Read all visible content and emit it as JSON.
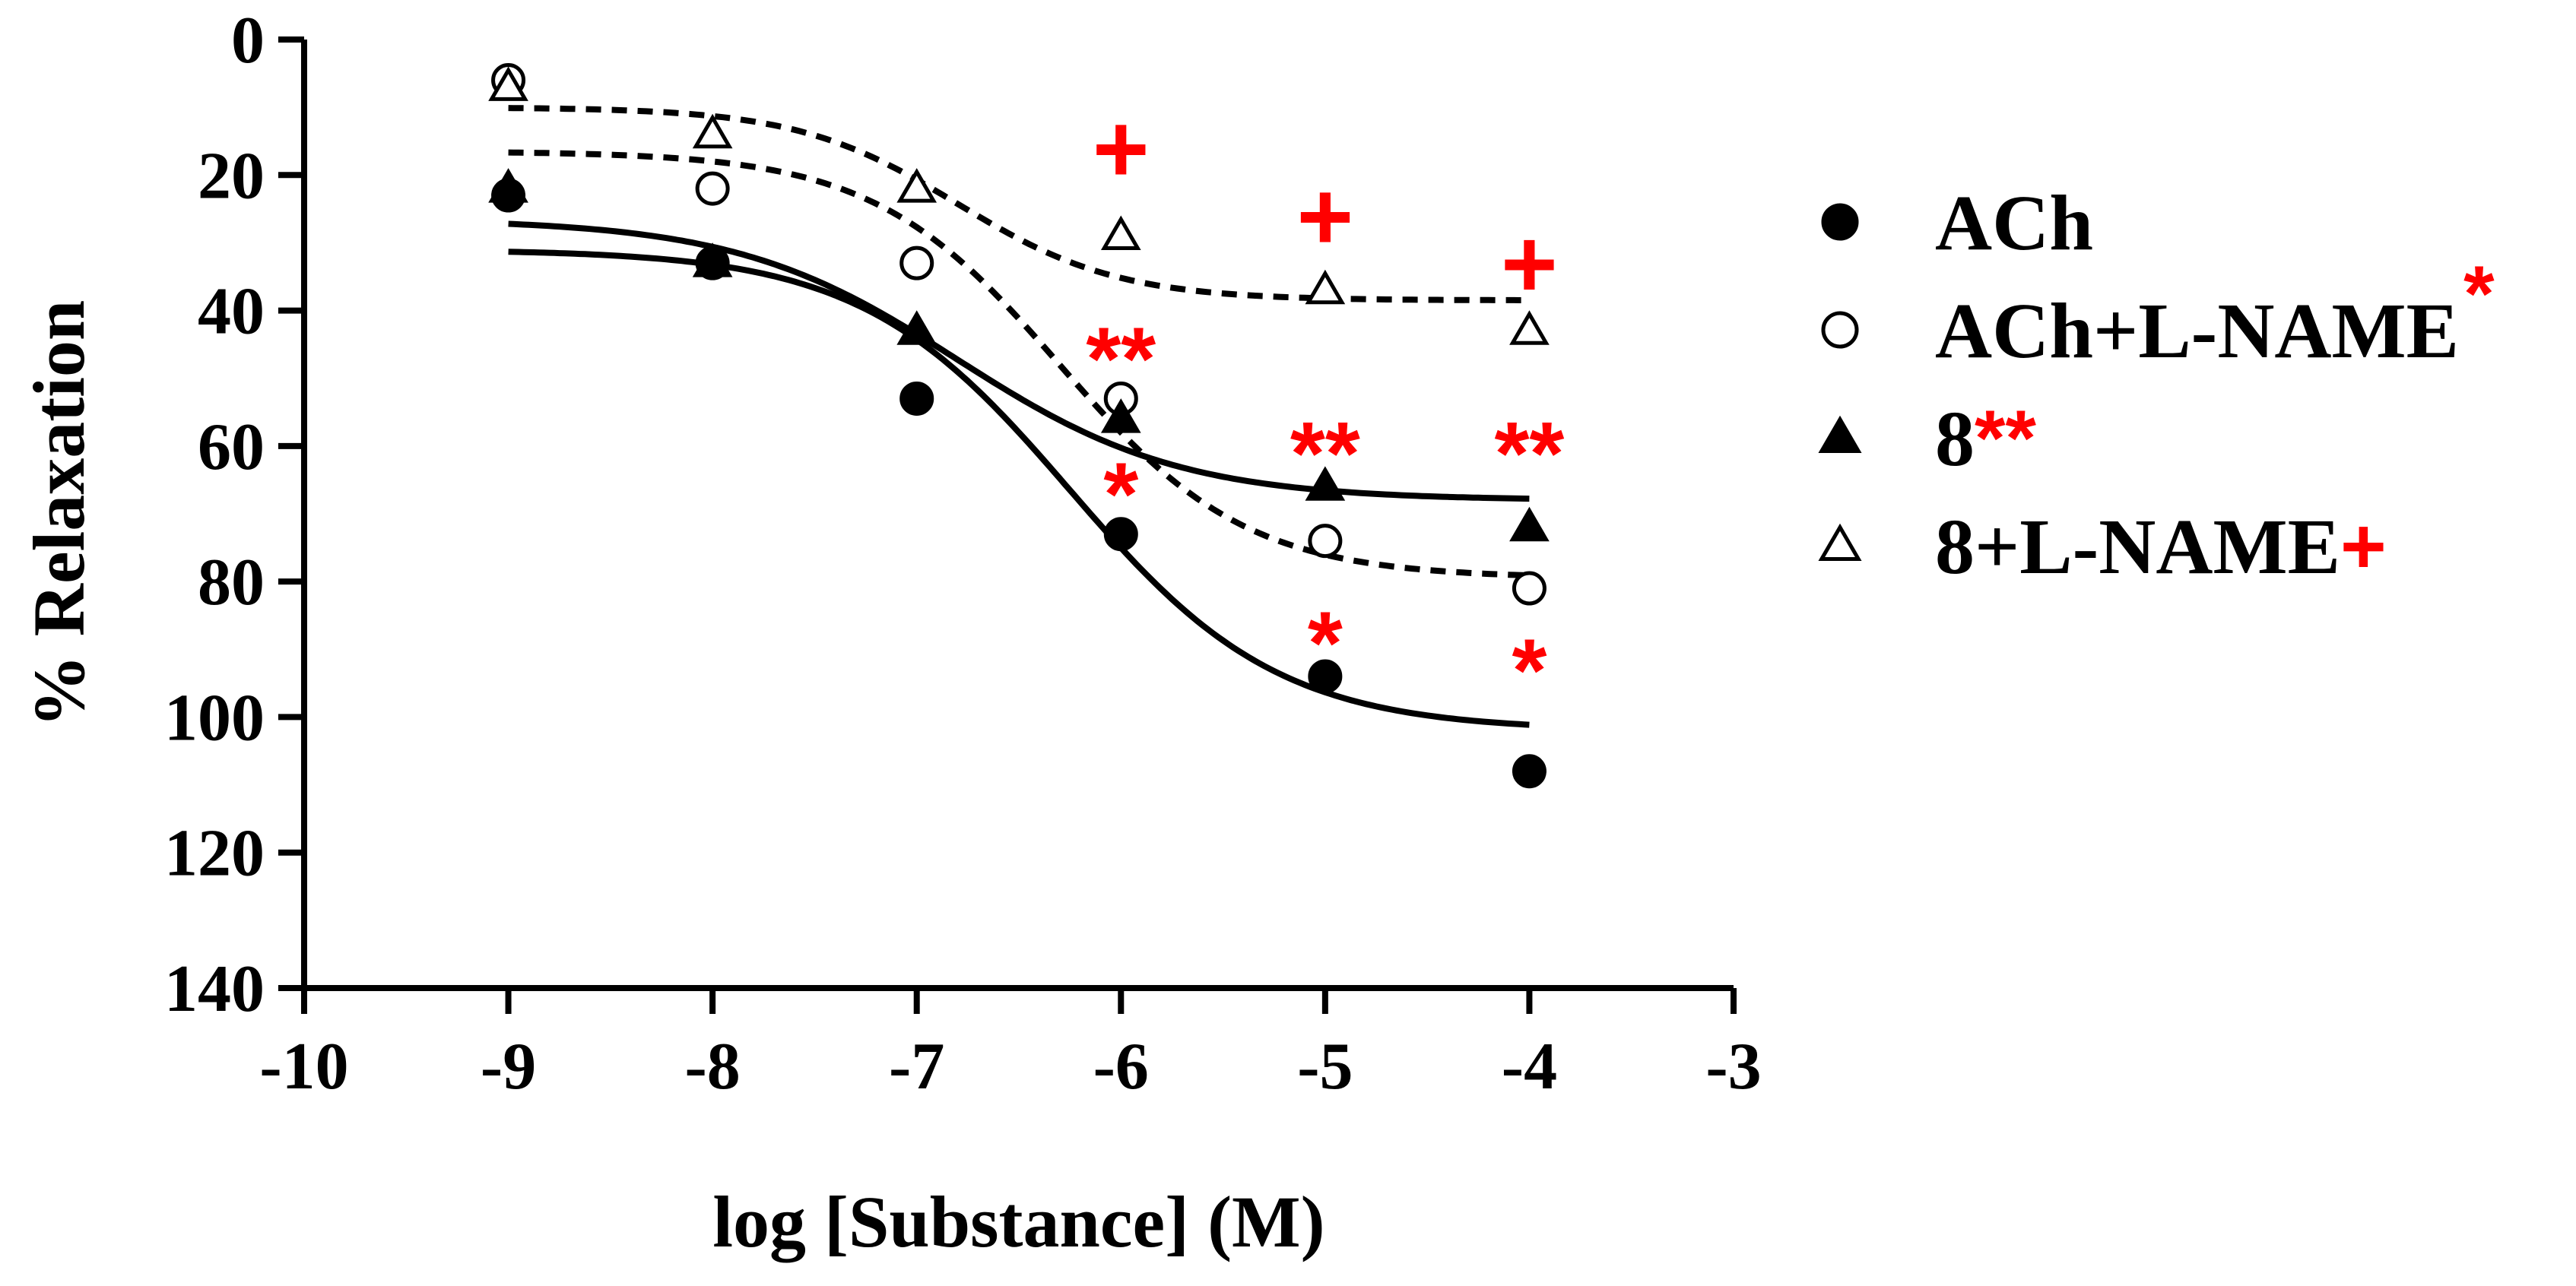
{
  "chart_data": {
    "type": "scatter",
    "title": "",
    "xlabel": "log [Substance] (M)",
    "ylabel": "% Relaxation",
    "xlim": [
      -10,
      -3
    ],
    "ylim": [
      0,
      140
    ],
    "y_inverted": true,
    "x_ticks": [
      "-10",
      "-9",
      "-8",
      "-7",
      "-6",
      "-5",
      "-4",
      "-3"
    ],
    "y_ticks": [
      "0",
      "20",
      "40",
      "60",
      "80",
      "100",
      "120",
      "140"
    ],
    "grid": false,
    "legend_position": "right",
    "significance_color": "#ff0000",
    "series": [
      {
        "name": "ACh",
        "legend_suffix": "",
        "marker": "circle-filled",
        "fit_line": "solid",
        "x": [
          -9,
          -8,
          -7,
          -6,
          -5,
          -4
        ],
        "y": [
          23,
          33,
          53,
          73,
          94,
          108
        ],
        "fit": {
          "bottom": 31,
          "top": 102,
          "logEC50": -6.25,
          "hill": 0.85
        }
      },
      {
        "name": "ACh+L-NAME",
        "legend_suffix": "*",
        "marker": "circle-open",
        "fit_line": "dashed",
        "x": [
          -9,
          -8,
          -7,
          -6,
          -5,
          -4
        ],
        "y": [
          6,
          22,
          33,
          53,
          74,
          81
        ],
        "fit": {
          "bottom": 16.5,
          "top": 79.5,
          "logEC50": -6.3,
          "hill": 0.95
        }
      },
      {
        "name": "8",
        "legend_suffix": "**",
        "marker": "triangle-filled",
        "fit_line": "solid",
        "x": [
          -9,
          -8,
          -7,
          -6,
          -5,
          -4
        ],
        "y": [
          22,
          33,
          43,
          56,
          66,
          72
        ],
        "fit": {
          "bottom": 26.5,
          "top": 68,
          "logEC50": -6.8,
          "hill": 0.8
        }
      },
      {
        "name": "8+L-NAME",
        "legend_suffix": "+",
        "marker": "triangle-open",
        "fit_line": "dashed",
        "x": [
          -9,
          -8,
          -7,
          -6,
          -5,
          -4
        ],
        "y": [
          7,
          14,
          22,
          29,
          37,
          43
        ],
        "fit": {
          "bottom": 10,
          "top": 38.5,
          "logEC50": -6.8,
          "hill": 1.1
        }
      }
    ],
    "annotations": [
      {
        "x": -6,
        "y": 16,
        "text": "+"
      },
      {
        "x": -5,
        "y": 26,
        "text": "+"
      },
      {
        "x": -4,
        "y": 33,
        "text": "+"
      },
      {
        "x": -6,
        "y": 47,
        "text": "**"
      },
      {
        "x": -5,
        "y": 61,
        "text": "**"
      },
      {
        "x": -4,
        "y": 61,
        "text": "**"
      },
      {
        "x": -6,
        "y": 67,
        "text": "*"
      },
      {
        "x": -5,
        "y": 89,
        "text": "*"
      },
      {
        "x": -4,
        "y": 93,
        "text": "*"
      }
    ]
  }
}
